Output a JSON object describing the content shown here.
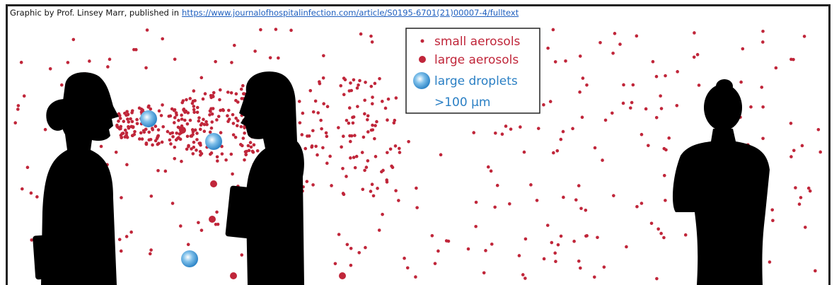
{
  "credit": {
    "text": "Graphic by Prof. Linsey Marr, published in",
    "link": "https://www.journalofhospitalinfection.com/article/S0195-6701(21)00007-4/fulltext"
  },
  "legend": {
    "small": "small aerosols",
    "large": "large aerosols",
    "droplets": "large droplets",
    "size": ">100 µm"
  }
}
